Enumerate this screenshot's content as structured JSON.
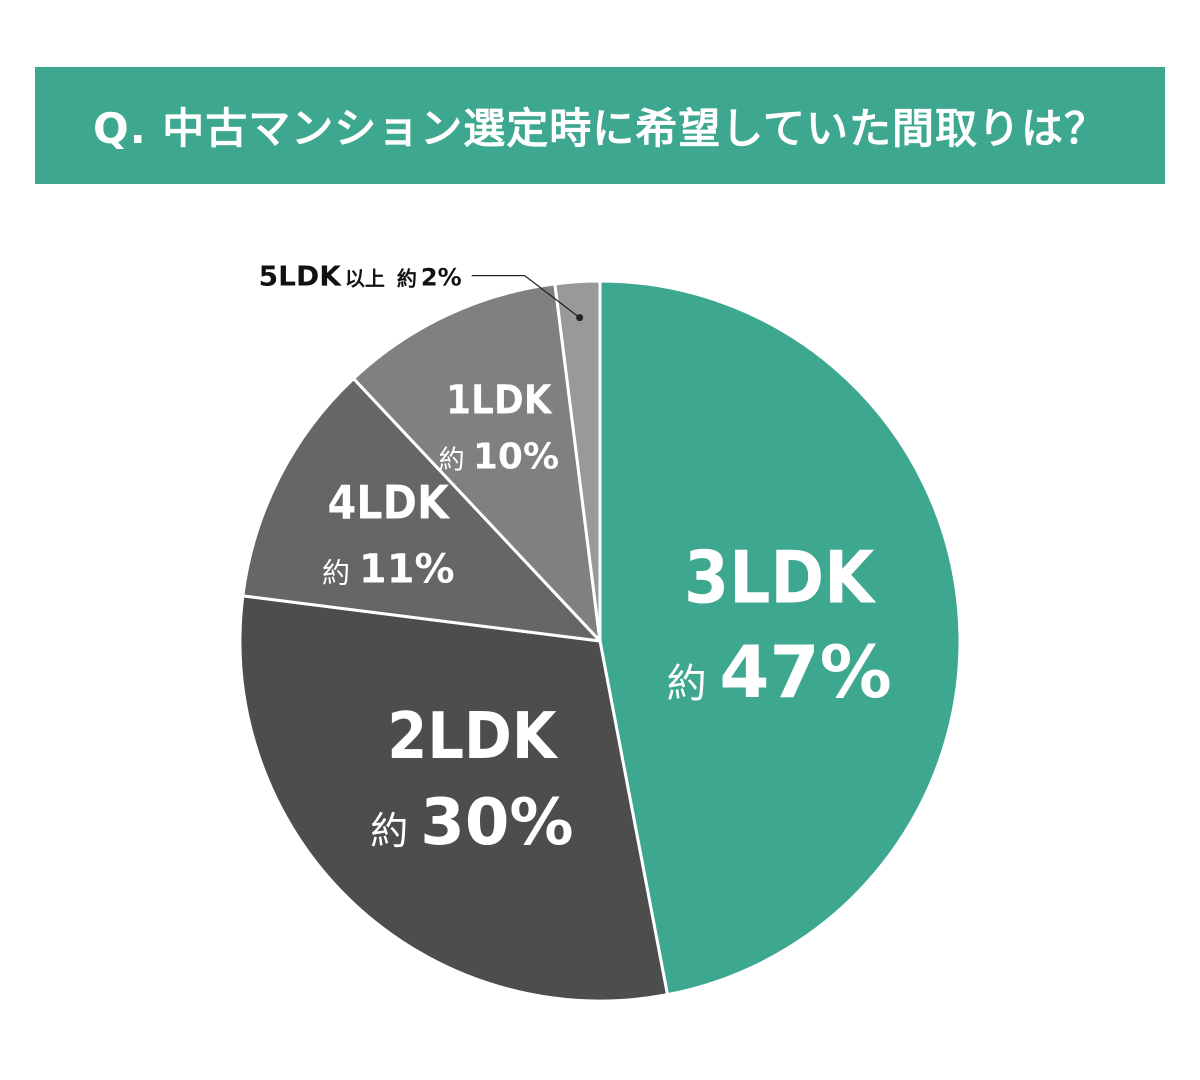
{
  "chart_data": {
    "type": "pie",
    "title": "Q. 中古マンション選定時に希望していた間取りは？",
    "slices": [
      {
        "label": "3LDK",
        "prefix": "約",
        "pct_text": "47%",
        "value": 47,
        "color": "#3ea78f"
      },
      {
        "label": "2LDK",
        "prefix": "約",
        "pct_text": "30%",
        "value": 30,
        "color": "#4d4d4d"
      },
      {
        "label": "4LDK",
        "prefix": "約",
        "pct_text": "11%",
        "value": 11,
        "color": "#666666"
      },
      {
        "label": "1LDK",
        "prefix": "約",
        "pct_text": "10%",
        "value": 10,
        "color": "#808080"
      },
      {
        "label": "5LDK",
        "suffix": "以上",
        "prefix": "約",
        "pct_text": "2%",
        "value": 2,
        "color": "#999999"
      }
    ]
  }
}
